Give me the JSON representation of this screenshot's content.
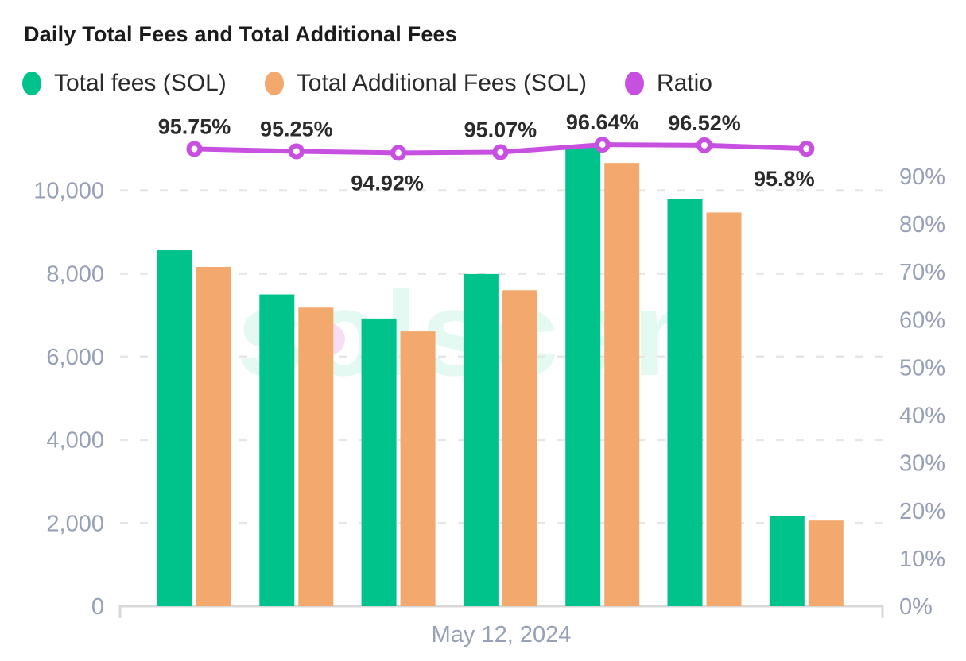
{
  "title": "Daily Total Fees and Total Additional Fees",
  "legend": [
    {
      "label": "Total fees (SOL)",
      "color": "#00c28b"
    },
    {
      "label": "Total Additional Fees (SOL)",
      "color": "#f3a86d"
    },
    {
      "label": "Ratio",
      "color": "#c850e0"
    }
  ],
  "watermark": {
    "text": "solscan"
  },
  "colors": {
    "green": "#00c28b",
    "orange": "#f3a86d",
    "purple": "#c850e0",
    "axis_text": "#97a0b7",
    "data_label": "#2b2b2b",
    "gridline": "#e6e6e6",
    "axis_line": "#d8d8d8",
    "watermark_text": "rgba(2,199,141,0.10)",
    "watermark_dot": "rgba(232,160,226,0.35)"
  },
  "chart_data": {
    "type": "bar",
    "title": "Daily Total Fees and Total Additional Fees",
    "x_axis_label": "May 12, 2024",
    "series": [
      {
        "name": "Total fees (SOL)",
        "type": "bar",
        "axis": "left",
        "values": [
          8560,
          7500,
          6920,
          7990,
          11060,
          9800,
          2170
        ]
      },
      {
        "name": "Total Additional Fees (SOL)",
        "type": "bar",
        "axis": "left",
        "values": [
          8160,
          7180,
          6610,
          7600,
          10660,
          9470,
          2060
        ]
      },
      {
        "name": "Ratio",
        "type": "line",
        "axis": "right",
        "values": [
          95.75,
          95.25,
          94.92,
          95.07,
          96.64,
          96.52,
          95.8
        ],
        "labels": [
          "95.75%",
          "95.25%",
          "94.92%",
          "95.07%",
          "96.64%",
          "96.52%",
          "95.8%"
        ],
        "label_placement": [
          "above",
          "above",
          "below",
          "above",
          "above",
          "above",
          "below"
        ],
        "label_dx": [
          0,
          0,
          -14,
          0,
          0,
          0,
          -28
        ]
      }
    ],
    "left_axis": {
      "ticks": [
        0,
        2000,
        4000,
        6000,
        8000,
        10000
      ],
      "tick_labels": [
        "0",
        "2,000",
        "4,000",
        "6,000",
        "8,000",
        "10,000"
      ]
    },
    "right_axis": {
      "ticks": [
        0,
        10,
        20,
        30,
        40,
        50,
        60,
        70,
        80,
        90
      ],
      "tick_labels": [
        "0%",
        "10%",
        "20%",
        "30%",
        "40%",
        "50%",
        "60%",
        "70%",
        "80%",
        "90%"
      ]
    },
    "grid": "dashed horizontal, left-axis ticks only",
    "legend_position": "top-left"
  }
}
